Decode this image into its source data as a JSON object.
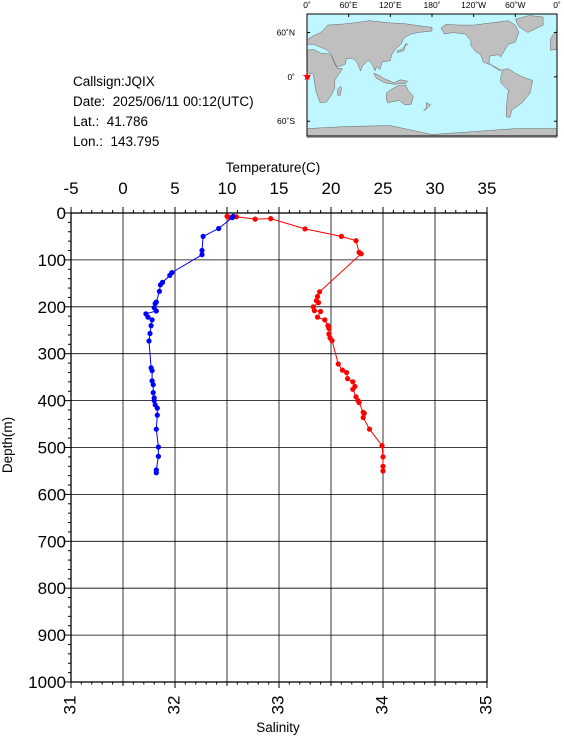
{
  "info": {
    "callsign": "Callsign:JQIX",
    "date": "Date:  2025/06/11 00:12(UTC)",
    "lat": "Lat.:  41.786",
    "lon": "Lon.:  143.795"
  },
  "map": {
    "top_labels": [
      "0˚",
      "60˚E",
      "120˚E",
      "180˚",
      "120˚W",
      "60˚W",
      "0˚"
    ],
    "side_labels": [
      "60˚N",
      "0˚",
      "60˚S"
    ],
    "ocean_color": "#bff6ff",
    "land_color": "#bfbfbf",
    "marker": "red-star",
    "marker_color": "#ff0000"
  },
  "chart_data": {
    "type": "line",
    "ylabel": "Depth(m)",
    "ylim": [
      0,
      1000
    ],
    "y_ticks": [
      "0",
      "100",
      "200",
      "300",
      "400",
      "500",
      "600",
      "700",
      "800",
      "900",
      "1000"
    ],
    "y_inverted": true,
    "grid": true,
    "temperature_axis": {
      "label": "Temperature(C)",
      "position": "top",
      "range": [
        -5,
        35
      ],
      "ticks": [
        "-5",
        "0",
        "5",
        "10",
        "15",
        "20",
        "25",
        "30",
        "35"
      ]
    },
    "salinity_axis": {
      "label": "Salinity",
      "position": "bottom",
      "range": [
        31,
        35
      ],
      "ticks": [
        "31",
        "32",
        "33",
        "34",
        "35"
      ]
    },
    "series": [
      {
        "name": "Temperature",
        "axis": "temperature",
        "color": "#ff0000",
        "points": [
          [
            10,
            7
          ],
          [
            10.2,
            9
          ],
          [
            10.9,
            8
          ],
          [
            12.7,
            13
          ],
          [
            14.2,
            12
          ],
          [
            17.5,
            34
          ],
          [
            21,
            50
          ],
          [
            22.4,
            59
          ],
          [
            22.7,
            84
          ],
          [
            22.9,
            87
          ],
          [
            18.9,
            168
          ],
          [
            18.7,
            178
          ],
          [
            18.6,
            187
          ],
          [
            18.8,
            191
          ],
          [
            18.3,
            200
          ],
          [
            18.4,
            208
          ],
          [
            19,
            210
          ],
          [
            18.7,
            222
          ],
          [
            19.4,
            228
          ],
          [
            19.7,
            240
          ],
          [
            19.8,
            246
          ],
          [
            19.8,
            258
          ],
          [
            19.9,
            266
          ],
          [
            20.1,
            272
          ],
          [
            20.7,
            322
          ],
          [
            21.1,
            335
          ],
          [
            21.5,
            340
          ],
          [
            21.6,
            353
          ],
          [
            22.1,
            360
          ],
          [
            22.3,
            370
          ],
          [
            22.1,
            376
          ],
          [
            22.4,
            392
          ],
          [
            22.6,
            400
          ],
          [
            22.7,
            404
          ],
          [
            23.1,
            425
          ],
          [
            23.2,
            427
          ],
          [
            23.1,
            436
          ],
          [
            23.7,
            461
          ],
          [
            24.9,
            496
          ],
          [
            25,
            520
          ],
          [
            25,
            540
          ],
          [
            25,
            550
          ]
        ]
      },
      {
        "name": "Salinity",
        "axis": "salinity",
        "color": "#0000ff",
        "points": [
          [
            32.56,
            7
          ],
          [
            32.55,
            10
          ],
          [
            32.42,
            33
          ],
          [
            32.27,
            50
          ],
          [
            32.26,
            80
          ],
          [
            32.26,
            89
          ],
          [
            31.97,
            127
          ],
          [
            31.95,
            133
          ],
          [
            31.88,
            148
          ],
          [
            31.86,
            153
          ],
          [
            31.85,
            167
          ],
          [
            31.82,
            190
          ],
          [
            31.81,
            193
          ],
          [
            31.8,
            202
          ],
          [
            31.82,
            209
          ],
          [
            31.72,
            215
          ],
          [
            31.74,
            222
          ],
          [
            31.78,
            228
          ],
          [
            31.77,
            240
          ],
          [
            31.76,
            257
          ],
          [
            31.75,
            273
          ],
          [
            31.77,
            330
          ],
          [
            31.78,
            336
          ],
          [
            31.78,
            358
          ],
          [
            31.79,
            366
          ],
          [
            31.79,
            383
          ],
          [
            31.8,
            394
          ],
          [
            31.8,
            400
          ],
          [
            31.81,
            409
          ],
          [
            31.83,
            416
          ],
          [
            31.83,
            431
          ],
          [
            31.82,
            461
          ],
          [
            31.84,
            499
          ],
          [
            31.84,
            519
          ],
          [
            31.82,
            548
          ],
          [
            31.82,
            554
          ]
        ]
      }
    ]
  }
}
